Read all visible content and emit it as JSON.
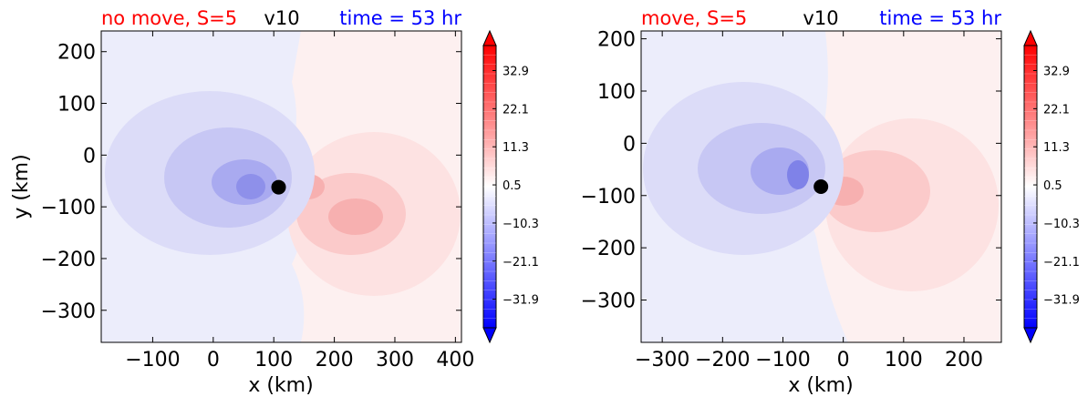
{
  "colors": {
    "positive": "#ff0000",
    "negative": "#0000ff",
    "neutral": "#ffffff",
    "label_red": "#ff0000",
    "label_blue": "#0000ff",
    "label_black": "#000000"
  },
  "chart_data": [
    {
      "type": "heatmap",
      "variable": "v10",
      "title_left": "no move, S=5",
      "title_center": "v10",
      "title_right": "time = 53 hr",
      "xlabel": "x (km)",
      "ylabel": "y (km)",
      "xlim": [
        -185,
        410
      ],
      "ylim": [
        -362,
        240
      ],
      "xticks": [
        -100,
        0,
        100,
        200,
        300,
        400
      ],
      "yticks": [
        200,
        100,
        0,
        -100,
        -200,
        -300
      ],
      "xtick_labels": [
        "−100",
        "0",
        "100",
        "200",
        "300",
        "400"
      ],
      "ytick_labels": [
        "200",
        "100",
        "0",
        "−100",
        "−200",
        "−300"
      ],
      "center_marker": {
        "x": 108,
        "y": -62
      },
      "colorbar": {
        "ticks": [
          "32.9",
          "22.1",
          "11.3",
          "0.5",
          "−10.3",
          "−21.1",
          "−31.9"
        ],
        "values": [
          32.9,
          22.1,
          11.3,
          0.5,
          -10.3,
          -21.1,
          -31.9
        ],
        "range": [
          -40,
          40
        ],
        "extend": "both"
      }
    },
    {
      "type": "heatmap",
      "variable": "v10",
      "title_left": "move, S=5",
      "title_center": "v10",
      "title_right": "time = 53 hr",
      "xlabel": "x (km)",
      "ylabel": "",
      "xlim": [
        -335,
        262
      ],
      "ylim": [
        -381,
        215
      ],
      "xticks": [
        -300,
        -200,
        -100,
        0,
        100,
        200
      ],
      "yticks": [
        200,
        100,
        0,
        -100,
        -200,
        -300
      ],
      "xtick_labels": [
        "−300",
        "−200",
        "−100",
        "0",
        "100",
        "200"
      ],
      "ytick_labels": [
        "200",
        "100",
        "0",
        "−100",
        "−200",
        "−300"
      ],
      "center_marker": {
        "x": -37,
        "y": -83
      },
      "colorbar": {
        "ticks": [
          "32.9",
          "22.1",
          "11.3",
          "0.5",
          "−10.3",
          "−21.1",
          "−31.9"
        ],
        "values": [
          32.9,
          22.1,
          11.3,
          0.5,
          -10.3,
          -21.1,
          -31.9
        ],
        "range": [
          -40,
          40
        ],
        "extend": "both"
      }
    }
  ]
}
